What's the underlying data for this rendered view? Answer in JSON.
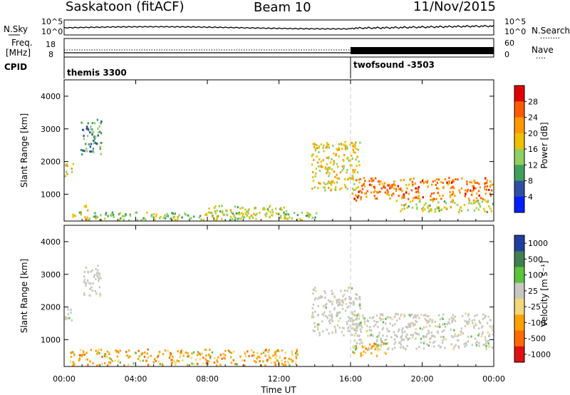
{
  "header": {
    "station": "Saskatoon (fitACF)",
    "beam": "Beam 10",
    "date": "11/Nov/2015"
  },
  "nsky_panel": {
    "left_label": "N.Sky",
    "left_ticks": [
      "10^5",
      "10^0"
    ],
    "right_ticks": [
      "10^5",
      "10^0"
    ],
    "right_label": "N.Search",
    "right_marker": "........"
  },
  "freq_panel": {
    "left_label_1": "Freq.",
    "left_label_2": "[MHz]",
    "left_ticks": [
      "18",
      "8"
    ],
    "right_ticks": [
      "60",
      "0"
    ],
    "right_label": "Nave",
    "right_marker": "...."
  },
  "cpid_panel": {
    "label": "CPID",
    "modes": [
      {
        "name": "themis 3300",
        "start_hour": 0
      },
      {
        "name": "twofsound -3503",
        "start_hour": 16
      }
    ]
  },
  "power_panel": {
    "ylabel": "Slant Range [km]",
    "yticks": [
      "4000",
      "3000",
      "2000",
      "1000"
    ],
    "colorbar_label": "Power [dB]",
    "colorbar_ticks": [
      "28",
      "24",
      "20",
      "16",
      "12",
      "8",
      "4"
    ],
    "colorbar_colors": [
      "#e00000",
      "#ff5a00",
      "#ff9800",
      "#f0c000",
      "#8fd060",
      "#3ea05a",
      "#2f4fa0",
      "#0020ff"
    ]
  },
  "velocity_panel": {
    "ylabel": "Slant Range [km]",
    "yticks": [
      "4000",
      "3000",
      "2000",
      "1000"
    ],
    "colorbar_label": "Velocity [m s⁻¹]",
    "colorbar_ticks": [
      "1000",
      "500",
      "100",
      "25",
      "-25",
      "-100",
      "-500",
      "-1000"
    ],
    "colorbar_colors": [
      "#1f3fa0",
      "#3f7f50",
      "#5cc43c",
      "#c8c8c0",
      "#f0d878",
      "#ffa000",
      "#ff6a00",
      "#e01010"
    ]
  },
  "xaxis": {
    "label": "Time UT",
    "ticks": [
      "00:00",
      "04:00",
      "08:00",
      "12:00",
      "16:00",
      "20:00",
      "00:00"
    ]
  },
  "chart_data": [
    {
      "type": "heatmap",
      "title": "Power [dB]",
      "xlabel": "Time UT",
      "ylabel": "Slant Range [km]",
      "xlim_hours": [
        0,
        24
      ],
      "ylim": [
        180,
        4500
      ],
      "colorbar_range": [
        0,
        30
      ],
      "features": [
        {
          "hours": [
            0.0,
            0.5
          ],
          "range_km": [
            1550,
            1950
          ],
          "value_db": 18
        },
        {
          "hours": [
            0.9,
            2.1
          ],
          "range_km": [
            2200,
            3300
          ],
          "value_db": 10
        },
        {
          "hours": [
            0.9,
            1.3
          ],
          "range_km": [
            200,
            700
          ],
          "value_db": 20
        },
        {
          "hours": [
            0.4,
            14.2
          ],
          "range_km": [
            200,
            450
          ],
          "value_db": 14
        },
        {
          "hours": [
            8.0,
            12.5
          ],
          "range_km": [
            250,
            650
          ],
          "value_db": 16
        },
        {
          "hours": [
            13.8,
            16.5
          ],
          "range_km": [
            1100,
            2600
          ],
          "value_db": 18
        },
        {
          "hours": [
            16.0,
            24.0
          ],
          "range_km": [
            800,
            1500
          ],
          "value_db": 24
        },
        {
          "hours": [
            18.5,
            24.0
          ],
          "range_km": [
            450,
            800
          ],
          "value_db": 16
        }
      ]
    },
    {
      "type": "heatmap",
      "title": "Velocity [m s-1]",
      "xlabel": "Time UT",
      "ylabel": "Slant Range [km]",
      "xlim_hours": [
        0,
        24
      ],
      "ylim": [
        180,
        4500
      ],
      "colorbar_range": [
        -1000,
        1000
      ],
      "features": [
        {
          "hours": [
            0.0,
            0.5
          ],
          "range_km": [
            1550,
            1950
          ],
          "value_ms": 0
        },
        {
          "hours": [
            1.0,
            2.0
          ],
          "range_km": [
            2300,
            3300
          ],
          "value_ms": 0
        },
        {
          "hours": [
            0.3,
            13.0
          ],
          "range_km": [
            200,
            700
          ],
          "value_ms": -100
        },
        {
          "hours": [
            13.8,
            16.5
          ],
          "range_km": [
            1100,
            2600
          ],
          "value_ms": 0
        },
        {
          "hours": [
            16.0,
            24.0
          ],
          "range_km": [
            700,
            1800
          ],
          "value_ms": 0
        },
        {
          "hours": [
            16.0,
            18.0
          ],
          "range_km": [
            500,
            900
          ],
          "value_ms": -300
        }
      ]
    }
  ]
}
